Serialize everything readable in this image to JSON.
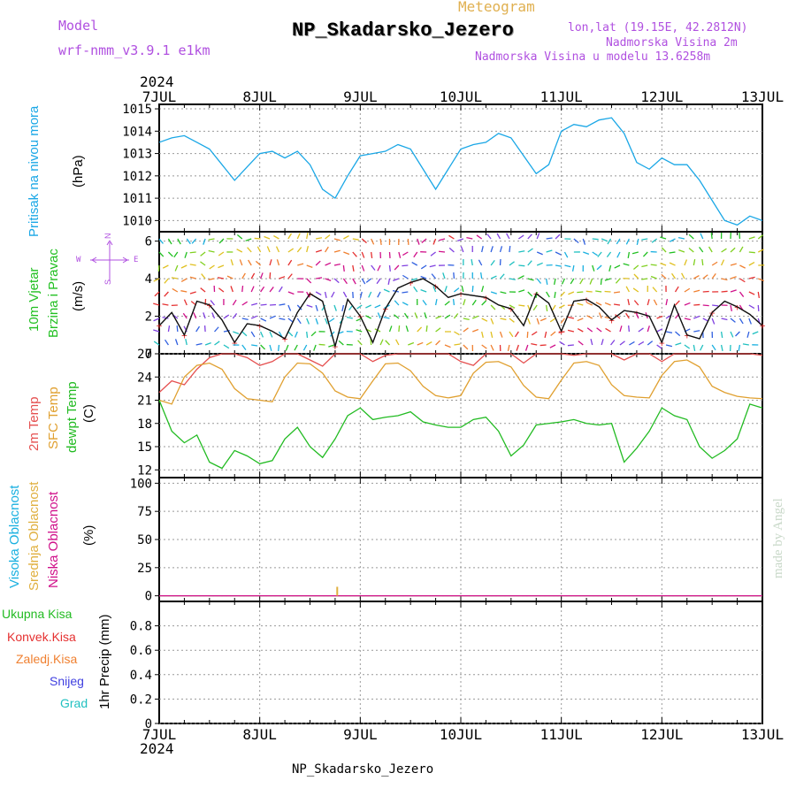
{
  "header": {
    "meteogram": "Meteogram",
    "model_label": "Model",
    "model_value": "wrf-nmm_v3.9.1 e1km",
    "station": "NP_Skadarsko_Jezero",
    "lonlat": "lon,lat (19.15E, 42.2812N)",
    "alt": "Nadmorska Visina 2m",
    "alt_model": "Nadmorska Visina u modelu 13.6258m",
    "footer_station": "NP_Skadarsko_Jezero",
    "watermark": "made by Angel"
  },
  "colors": {
    "pressure": "#1aa7e6",
    "wind_label": "#22c022",
    "t2m": "#e55050",
    "tsfc": "#e0a030",
    "dewpt": "#22bb22",
    "cloud_high": "#1ab0e0",
    "cloud_mid": "#e0b040",
    "cloud_low": "#d0108a",
    "purple": "#b050e0",
    "precip_total": "#22bb22",
    "precip_conv": "#e53030",
    "precip_frozen": "#f08030",
    "precip_snow": "#4040e0",
    "precip_grad": "#20c0c0"
  },
  "x_axis": {
    "year": "2024",
    "ticks": [
      "7JUL",
      "8JUL",
      "9JUL",
      "10JUL",
      "11JUL",
      "12JUL",
      "13JUL"
    ]
  },
  "panels": {
    "pressure": {
      "label": "Pritisak na nivou mora",
      "unit": "(hPa)"
    },
    "wind": {
      "label1": "10m Vjetar",
      "label2": "Brzina i Pravac",
      "unit": "(m/s)",
      "compass_w": "W",
      "compass_e": "E",
      "compass_n": "N",
      "compass_s": "S"
    },
    "temp": {
      "label1": "2m Temp",
      "label2": "SFC Temp",
      "label3": "dewpt Temp",
      "unit": "(C)"
    },
    "cloud": {
      "label1": "Visoka Oblacnost",
      "label2": "Srednja Oblacnost",
      "label3": "Niska Oblacnost",
      "unit": "(%)"
    },
    "precip": {
      "legend": [
        "Ukupna Kisa",
        "Konvek.Kisa",
        "Zaledj.Kisa",
        "Snijeg",
        "Grad"
      ],
      "unit": "1hr Precip (mm)"
    }
  },
  "chart_data": [
    {
      "type": "line",
      "name_panel": "pressure",
      "ylim": [
        1009.5,
        1015.2
      ],
      "yticks": [
        1010,
        1011,
        1012,
        1013,
        1014,
        1015
      ],
      "x": [
        0,
        3,
        6,
        9,
        12,
        15,
        18,
        21,
        24,
        27,
        30,
        33,
        36,
        39,
        42,
        45,
        48,
        51,
        54,
        57,
        60,
        63,
        66,
        69,
        72,
        75,
        78,
        81,
        84,
        87,
        90,
        93,
        96,
        99,
        102,
        105,
        108,
        111,
        114,
        117,
        120,
        123,
        126,
        129,
        132,
        135,
        138,
        141,
        144
      ],
      "series": [
        {
          "values": [
            1013.5,
            1013.7,
            1013.8,
            1013.5,
            1013.2,
            1012.5,
            1011.8,
            1012.4,
            1013.0,
            1013.1,
            1012.8,
            1013.1,
            1012.5,
            1011.4,
            1011.0,
            1012.0,
            1012.9,
            1013.0,
            1013.1,
            1013.4,
            1013.2,
            1012.3,
            1011.4,
            1012.3,
            1013.2,
            1013.4,
            1013.5,
            1013.9,
            1013.7,
            1012.9,
            1012.1,
            1012.5,
            1014.0,
            1014.3,
            1014.2,
            1014.5,
            1014.6,
            1013.9,
            1012.6,
            1012.3,
            1012.8,
            1012.5,
            1012.5,
            1011.8,
            1010.9,
            1010.0,
            1009.8,
            1010.2,
            1010.0
          ]
        }
      ]
    },
    {
      "type": "line",
      "name_panel": "wind",
      "ylim": [
        0,
        6.5
      ],
      "yticks": [
        0,
        2,
        4,
        6
      ],
      "x": [
        0,
        3,
        6,
        9,
        12,
        15,
        18,
        21,
        24,
        27,
        30,
        33,
        36,
        39,
        42,
        45,
        48,
        51,
        54,
        57,
        60,
        63,
        66,
        69,
        72,
        75,
        78,
        81,
        84,
        87,
        90,
        93,
        96,
        99,
        102,
        105,
        108,
        111,
        114,
        117,
        120,
        123,
        126,
        129,
        132,
        135,
        138,
        141,
        144
      ],
      "series": [
        {
          "values": [
            1.5,
            2.2,
            1.0,
            2.8,
            2.6,
            1.8,
            0.6,
            1.6,
            1.5,
            1.2,
            0.8,
            2.2,
            3.2,
            2.8,
            0.4,
            2.9,
            2.0,
            0.6,
            2.4,
            3.5,
            3.8,
            4.0,
            3.6,
            3.0,
            3.2,
            3.1,
            3.0,
            2.6,
            2.4,
            1.5,
            3.2,
            2.7,
            1.2,
            2.8,
            2.9,
            2.5,
            1.8,
            2.3,
            2.2,
            2.0,
            0.6,
            2.6,
            1.0,
            0.8,
            2.2,
            2.8,
            2.5,
            2.1,
            1.5
          ]
        }
      ]
    },
    {
      "type": "line",
      "name_panel": "temperature",
      "ylim": [
        11,
        27
      ],
      "yticks": [
        12,
        15,
        18,
        21,
        24,
        27
      ],
      "x": [
        0,
        3,
        6,
        9,
        12,
        15,
        18,
        21,
        24,
        27,
        30,
        33,
        36,
        39,
        42,
        45,
        48,
        51,
        54,
        57,
        60,
        63,
        66,
        69,
        72,
        75,
        78,
        81,
        84,
        87,
        90,
        93,
        96,
        99,
        102,
        105,
        108,
        111,
        114,
        117,
        120,
        123,
        126,
        129,
        132,
        135,
        138,
        141,
        144
      ],
      "series": [
        {
          "name": "2m Temp",
          "values": [
            22.0,
            23.5,
            23.0,
            25.0,
            26.5,
            27.0,
            27.0,
            26.5,
            25.5,
            26.0,
            27.0,
            27.0,
            26.2,
            25.4,
            27.0,
            27.0,
            27.0,
            26.0,
            26.8,
            27.0,
            27.0,
            27.0,
            27.0,
            27.0,
            26.0,
            25.5,
            27.0,
            27.0,
            27.0,
            25.8,
            27.0,
            27.0,
            27.0,
            26.8,
            27.0,
            27.0,
            27.0,
            26.2,
            27.0,
            27.0,
            26.0,
            27.0,
            27.0,
            27.0,
            27.0,
            27.0,
            27.0,
            27.0,
            26.8
          ]
        },
        {
          "name": "SFC Temp",
          "values": [
            21.0,
            20.5,
            24.0,
            25.5,
            25.8,
            25.0,
            22.5,
            21.2,
            21.0,
            20.8,
            24.0,
            25.8,
            25.7,
            24.5,
            22.2,
            21.4,
            21.2,
            23.5,
            25.7,
            25.8,
            24.8,
            22.8,
            21.6,
            21.3,
            21.6,
            24.5,
            25.9,
            26.0,
            25.3,
            22.9,
            21.4,
            21.2,
            23.6,
            25.8,
            26.0,
            25.5,
            23.0,
            21.6,
            21.4,
            21.3,
            24.2,
            26.0,
            26.2,
            25.3,
            22.8,
            22.0,
            21.5,
            21.3,
            21.2
          ]
        },
        {
          "name": "dewpt Temp",
          "values": [
            21.0,
            17.0,
            15.5,
            16.5,
            13.0,
            12.2,
            14.5,
            13.8,
            12.8,
            13.2,
            16.0,
            17.5,
            15.0,
            13.6,
            16.0,
            19.0,
            20.0,
            18.5,
            18.8,
            19.0,
            19.5,
            18.2,
            17.8,
            17.5,
            17.5,
            18.5,
            18.8,
            17.0,
            13.8,
            15.2,
            17.8,
            18.0,
            18.2,
            18.5,
            18.0,
            17.8,
            18.0,
            13.0,
            14.8,
            17.0,
            20.0,
            19.0,
            18.5,
            15.0,
            13.5,
            14.5,
            16.0,
            20.5,
            20.0
          ]
        }
      ]
    },
    {
      "type": "line",
      "name_panel": "cloud",
      "ylim": [
        -5,
        105
      ],
      "yticks": [
        0,
        25,
        50,
        75,
        100
      ],
      "x": [
        0,
        48,
        114,
        144
      ],
      "series": [
        {
          "name": "Visoka Oblacnost",
          "values": [
            0,
            0,
            0,
            0
          ]
        },
        {
          "name": "Srednja Oblacnost",
          "values": [
            0,
            0,
            0,
            0
          ]
        },
        {
          "name": "Niska Oblacnost",
          "values": [
            0,
            0,
            0,
            0
          ]
        }
      ],
      "spikes": [
        {
          "x": 42.5,
          "value": 8
        }
      ]
    },
    {
      "type": "bar",
      "name_panel": "precip",
      "ylim": [
        0,
        1.0
      ],
      "yticks": [
        0,
        0.2,
        0.4,
        0.6,
        0.8
      ],
      "x": [],
      "series": [
        {
          "name": "Ukupna Kisa",
          "values": []
        }
      ]
    }
  ]
}
